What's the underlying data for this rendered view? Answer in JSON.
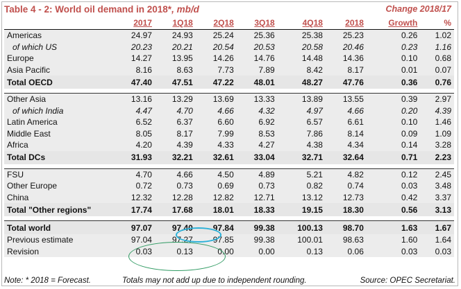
{
  "title": {
    "main": "Table 4 - 2: World oil demand in 2018*",
    "unit": ", mb/d"
  },
  "change_header": "Change 2018/17",
  "columns": [
    "2017",
    "1Q18",
    "2Q18",
    "3Q18",
    "4Q18",
    "2018",
    "Growth",
    "%"
  ],
  "rows": [
    {
      "label": "Americas",
      "values": [
        "24.97",
        "24.93",
        "25.24",
        "25.36",
        "25.38",
        "25.23",
        "0.26",
        "1.02"
      ]
    },
    {
      "label": "of which US",
      "values": [
        "20.23",
        "20.21",
        "20.54",
        "20.53",
        "20.58",
        "20.46",
        "0.23",
        "1.16"
      ]
    },
    {
      "label": "Europe",
      "values": [
        "14.27",
        "13.95",
        "14.26",
        "14.76",
        "14.48",
        "14.36",
        "0.10",
        "0.68"
      ]
    },
    {
      "label": "Asia Pacific",
      "values": [
        "8.16",
        "8.63",
        "7.73",
        "7.89",
        "8.42",
        "8.17",
        "0.01",
        "0.07"
      ]
    },
    {
      "label": "Total OECD",
      "values": [
        "47.40",
        "47.51",
        "47.22",
        "48.01",
        "48.27",
        "47.76",
        "0.36",
        "0.76"
      ]
    },
    {
      "label": "Other Asia",
      "values": [
        "13.16",
        "13.29",
        "13.69",
        "13.33",
        "13.89",
        "13.55",
        "0.39",
        "2.97"
      ]
    },
    {
      "label": "of which India",
      "values": [
        "4.47",
        "4.70",
        "4.66",
        "4.32",
        "4.97",
        "4.66",
        "0.20",
        "4.39"
      ]
    },
    {
      "label": "Latin America",
      "values": [
        "6.52",
        "6.37",
        "6.60",
        "6.92",
        "6.57",
        "6.61",
        "0.10",
        "1.46"
      ]
    },
    {
      "label": "Middle East",
      "values": [
        "8.05",
        "8.17",
        "7.99",
        "8.53",
        "7.86",
        "8.14",
        "0.09",
        "1.09"
      ]
    },
    {
      "label": "Africa",
      "values": [
        "4.20",
        "4.39",
        "4.33",
        "4.27",
        "4.38",
        "4.34",
        "0.14",
        "3.28"
      ]
    },
    {
      "label": "Total DCs",
      "values": [
        "31.93",
        "32.21",
        "32.61",
        "33.04",
        "32.71",
        "32.64",
        "0.71",
        "2.23"
      ]
    },
    {
      "label": "FSU",
      "values": [
        "4.70",
        "4.66",
        "4.50",
        "4.89",
        "5.21",
        "4.82",
        "0.12",
        "2.45"
      ]
    },
    {
      "label": "Other Europe",
      "values": [
        "0.72",
        "0.73",
        "0.69",
        "0.73",
        "0.82",
        "0.74",
        "0.03",
        "3.48"
      ]
    },
    {
      "label": "China",
      "values": [
        "12.32",
        "12.28",
        "12.82",
        "12.71",
        "13.12",
        "12.73",
        "0.42",
        "3.37"
      ]
    },
    {
      "label": "Total \"Other regions\"",
      "values": [
        "17.74",
        "17.68",
        "18.01",
        "18.33",
        "19.15",
        "18.30",
        "0.56",
        "3.13"
      ]
    },
    {
      "label": "Total world",
      "values": [
        "97.07",
        "97.40",
        "97.84",
        "99.38",
        "100.13",
        "98.70",
        "1.63",
        "1.67"
      ]
    },
    {
      "label": "Previous estimate",
      "values": [
        "97.04",
        "97.27",
        "97.85",
        "99.38",
        "100.01",
        "98.63",
        "1.60",
        "1.64"
      ]
    },
    {
      "label": "Revision",
      "values": [
        "0.03",
        "0.13",
        "0.00",
        "0.00",
        "0.13",
        "0.06",
        "0.03",
        "0.03"
      ]
    }
  ],
  "footer": {
    "note": "Note: * 2018 = Forecast.",
    "rounding": "Totals may not add up due to independent rounding.",
    "source": "Source: OPEC Secretariat."
  }
}
